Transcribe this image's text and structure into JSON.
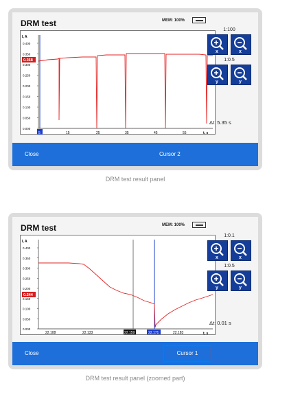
{
  "panel1": {
    "title": "DRM test",
    "mem": "MEM: 100%",
    "y_axis_label": "I, A",
    "x_axis_label": "t, s",
    "y_ticks": [
      "0.400",
      "0.350",
      "0.300",
      "0.250",
      "0.200",
      "0.150",
      "0.100",
      "0.050",
      "0.000"
    ],
    "x_ticks": [
      "15",
      "25",
      "35",
      "45",
      "55"
    ],
    "cursor_value": "0.368",
    "cursor_x_marker": "5",
    "zoom_x_label": "1:100",
    "zoom_y_label": "1:0.5",
    "delta_t": "Δt: 5.35 s",
    "close_label": "Close",
    "cursor_label": "Cursor 2",
    "caption": "DRM test result panel"
  },
  "panel2": {
    "title": "DRM test",
    "mem": "MEM: 100%",
    "y_axis_label": "I, A",
    "x_axis_label": "t, s",
    "y_ticks": [
      "0.400",
      "0.350",
      "0.300",
      "0.250",
      "0.200",
      "0.150",
      "0.100",
      "0.050",
      "0.000"
    ],
    "x_ticks": [
      "22.108",
      "22.133",
      "22.159",
      "22.171",
      "22.183"
    ],
    "cursor_value": "0.244",
    "zoom_x_label": "1:0.1",
    "zoom_y_label": "1:0.5",
    "delta_t": "Δt: 0.01 s",
    "close_label": "Close",
    "cursor_label": "Cursor 1",
    "caption": "DRM test result panel (zoomed part)"
  },
  "icons": [
    "zoom-in-x-icon",
    "zoom-out-x-icon",
    "zoom-in-y-icon",
    "zoom-out-y-icon",
    "battery-icon"
  ],
  "colors": {
    "accent": "#1e6fd9",
    "zoom_button": "#153e9a",
    "trace": "#e52020",
    "highlight": "#e53030"
  }
}
